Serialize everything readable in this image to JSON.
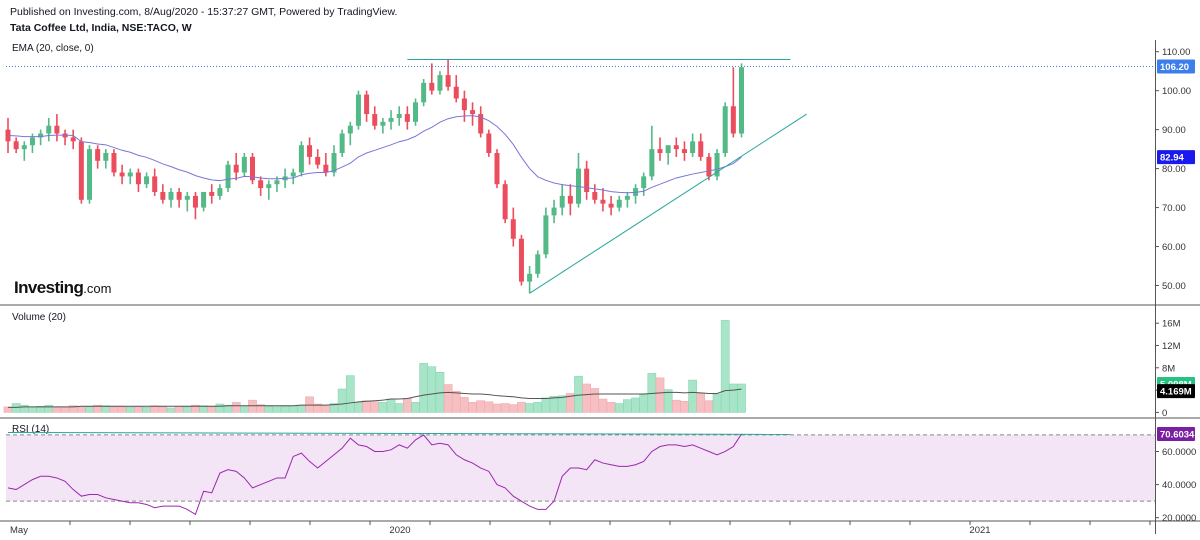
{
  "header": {
    "published": "Published on Investing.com, 8/Aug/2020 - 15:37:27 GMT, Powered by TradingView.",
    "instrument": "Tata Coffee Ltd, India, NSE:TACO, W"
  },
  "logo": {
    "brand": "Investing",
    "suffix": ".com"
  },
  "colors": {
    "up": "#53b987",
    "down": "#eb4d5c",
    "ema": "#7b75d8",
    "rsi": "#9c27b0",
    "rsi_fill": "#f3e5f5",
    "trendline": "#26a69a",
    "price_badge": "#3d7fea",
    "ema_badge": "#1a1aee",
    "rsi_badge": "#7b1fa2",
    "vol_badge": "#26c281",
    "vol_ma_badge": "#000000"
  },
  "chart_data": [
    {
      "type": "candlestick",
      "title": "EMA (20, close, 0)",
      "ylim": [
        45,
        113
      ],
      "yticks": [
        "50.00",
        "60.00",
        "70.00",
        "80.00",
        "90.00",
        "100.00",
        "110.00"
      ],
      "last_price": "106.20",
      "ema_last": "82.94",
      "bars": [
        [
          90,
          93,
          84,
          87
        ],
        [
          87,
          88,
          84,
          85
        ],
        [
          85,
          87,
          82,
          86
        ],
        [
          86,
          89,
          84,
          88
        ],
        [
          88,
          90,
          86,
          89
        ],
        [
          89,
          93,
          87,
          91
        ],
        [
          91,
          94,
          87,
          89
        ],
        [
          89,
          90,
          86,
          88
        ],
        [
          88,
          90,
          85,
          87
        ],
        [
          87,
          88,
          71,
          72
        ],
        [
          72,
          86,
          71,
          85
        ],
        [
          85,
          86,
          80,
          82
        ],
        [
          82,
          85,
          80,
          84
        ],
        [
          84,
          85,
          78,
          79
        ],
        [
          79,
          81,
          76,
          78
        ],
        [
          78,
          80,
          76,
          79
        ],
        [
          79,
          80,
          74,
          76
        ],
        [
          76,
          79,
          75,
          78
        ],
        [
          78,
          80,
          73,
          74
        ],
        [
          74,
          76,
          71,
          72
        ],
        [
          72,
          75,
          70,
          74
        ],
        [
          74,
          75,
          70,
          72
        ],
        [
          72,
          74,
          69,
          73
        ],
        [
          73,
          74,
          67,
          70
        ],
        [
          70,
          74,
          69,
          74
        ],
        [
          74,
          76,
          71,
          73
        ],
        [
          73,
          76,
          72,
          75
        ],
        [
          75,
          82,
          74,
          81
        ],
        [
          81,
          84,
          77,
          79
        ],
        [
          79,
          84,
          78,
          83
        ],
        [
          83,
          84,
          76,
          77
        ],
        [
          77,
          78,
          73,
          75
        ],
        [
          75,
          77,
          72,
          76
        ],
        [
          76,
          78,
          74,
          77
        ],
        [
          77,
          80,
          75,
          78
        ],
        [
          78,
          80,
          76,
          79
        ],
        [
          79,
          87,
          78,
          86
        ],
        [
          86,
          88,
          81,
          83
        ],
        [
          83,
          85,
          80,
          81
        ],
        [
          81,
          84,
          78,
          79
        ],
        [
          79,
          86,
          78,
          84
        ],
        [
          84,
          90,
          83,
          89
        ],
        [
          89,
          92,
          86,
          91
        ],
        [
          91,
          100,
          90,
          99
        ],
        [
          99,
          100,
          92,
          94
        ],
        [
          94,
          96,
          90,
          91
        ],
        [
          91,
          93,
          89,
          92
        ],
        [
          92,
          95,
          90,
          93
        ],
        [
          93,
          96,
          91,
          94
        ],
        [
          94,
          96,
          90,
          92
        ],
        [
          92,
          98,
          91,
          97
        ],
        [
          97,
          103,
          96,
          102
        ],
        [
          102,
          107,
          99,
          100
        ],
        [
          100,
          105,
          99,
          104
        ],
        [
          104,
          108,
          100,
          101
        ],
        [
          101,
          104,
          97,
          98
        ],
        [
          98,
          100,
          92,
          95
        ],
        [
          95,
          97,
          91,
          94
        ],
        [
          94,
          96,
          88,
          89
        ],
        [
          89,
          90,
          83,
          84
        ],
        [
          84,
          85,
          75,
          76
        ],
        [
          76,
          77,
          66,
          67
        ],
        [
          67,
          70,
          60,
          62
        ],
        [
          62,
          63,
          50,
          51
        ],
        [
          51,
          55,
          48,
          53
        ],
        [
          53,
          59,
          52,
          58
        ],
        [
          58,
          70,
          57,
          68
        ],
        [
          68,
          72,
          66,
          70
        ],
        [
          70,
          76,
          68,
          73
        ],
        [
          73,
          76,
          68,
          71
        ],
        [
          71,
          84,
          70,
          80
        ],
        [
          80,
          82,
          72,
          74
        ],
        [
          74,
          76,
          71,
          72
        ],
        [
          72,
          75,
          69,
          71
        ],
        [
          71,
          73,
          68,
          70
        ],
        [
          70,
          73,
          69,
          72
        ],
        [
          72,
          74,
          70,
          73
        ],
        [
          73,
          76,
          71,
          75
        ],
        [
          75,
          79,
          73,
          78
        ],
        [
          78,
          91,
          77,
          85
        ],
        [
          85,
          88,
          82,
          84
        ],
        [
          84,
          86,
          81,
          86
        ],
        [
          86,
          88,
          83,
          85
        ],
        [
          85,
          87,
          82,
          84
        ],
        [
          84,
          89,
          83,
          87
        ],
        [
          87,
          89,
          82,
          83
        ],
        [
          83,
          84,
          77,
          78
        ],
        [
          78,
          85,
          77,
          84
        ],
        [
          84,
          97,
          83,
          96
        ],
        [
          96,
          106,
          88,
          89
        ],
        [
          89,
          107,
          88,
          106
        ]
      ],
      "ema": [
        88.5,
        88.4,
        88.2,
        88.2,
        88.2,
        88.5,
        88.6,
        88.6,
        88.5,
        86.9,
        86.7,
        86.3,
        86.1,
        85.4,
        84.7,
        84.2,
        83.4,
        82.9,
        82.1,
        81.2,
        80.5,
        79.7,
        79.1,
        78.2,
        77.6,
        77.1,
        76.9,
        77.3,
        77.5,
        78.0,
        77.9,
        77.6,
        77.4,
        77.4,
        77.5,
        77.6,
        78.4,
        78.8,
        79.0,
        79.0,
        79.5,
        80.4,
        81.4,
        83.0,
        84.0,
        84.7,
        85.4,
        86.1,
        86.9,
        87.4,
        88.3,
        89.6,
        90.6,
        91.9,
        92.8,
        93.3,
        93.5,
        93.6,
        93.2,
        92.3,
        90.8,
        88.8,
        86.2,
        82.9,
        80.0,
        77.9,
        77.0,
        76.3,
        75.9,
        75.6,
        75.4,
        75.1,
        74.8,
        74.5,
        74.1,
        73.9,
        73.8,
        73.9,
        74.2,
        75.2,
        76.0,
        76.8,
        77.6,
        78.1,
        78.6,
        79.0,
        79.4,
        79.8,
        80.5,
        81.3,
        82.94
      ]
    },
    {
      "type": "bar",
      "title": "Volume (20)",
      "ylim": [
        -1,
        18
      ],
      "yticks": [
        "0",
        "4M",
        "8M",
        "12M",
        "16M"
      ],
      "last_volume": "5.098M",
      "volume_ma": "4.169M",
      "values": [
        1.0,
        1.6,
        1.3,
        1.0,
        1.1,
        1.3,
        1.0,
        1.0,
        1.2,
        1.1,
        1.0,
        1.3,
        1.2,
        1.0,
        1.0,
        0.9,
        1.1,
        0.9,
        1.2,
        1.0,
        0.8,
        1.1,
        1.0,
        1.3,
        1.2,
        1.0,
        1.5,
        1.3,
        1.8,
        1.2,
        2.2,
        1.4,
        1.1,
        1.0,
        1.1,
        1.2,
        1.3,
        2.8,
        1.5,
        1.3,
        1.6,
        4.2,
        6.6,
        1.8,
        2.1,
        1.9,
        1.8,
        2.4,
        1.6,
        2.5,
        1.8,
        8.8,
        8.2,
        7.2,
        5.0,
        3.8,
        2.7,
        1.8,
        2.1,
        1.9,
        1.5,
        1.6,
        1.4,
        1.8,
        1.6,
        1.8,
        2.6,
        2.9,
        3.0,
        3.4,
        6.5,
        5.1,
        4.3,
        2.4,
        1.8,
        1.6,
        2.3,
        2.6,
        3.2,
        7.0,
        6.2,
        4.1,
        2.2,
        2.0,
        5.8,
        3.4,
        2.1,
        3.3,
        16.5,
        5.1,
        5.098
      ],
      "ma": [
        0.9,
        0.9,
        1.0,
        1.0,
        1.0,
        1.0,
        1.0,
        1.0,
        1.0,
        1.1,
        1.1,
        1.1,
        1.1,
        1.1,
        1.1,
        1.1,
        1.1,
        1.1,
        1.1,
        1.1,
        1.1,
        1.1,
        1.1,
        1.1,
        1.1,
        1.1,
        1.1,
        1.2,
        1.2,
        1.2,
        1.2,
        1.2,
        1.2,
        1.2,
        1.2,
        1.2,
        1.3,
        1.3,
        1.3,
        1.3,
        1.4,
        1.5,
        1.7,
        1.9,
        2.0,
        2.1,
        2.2,
        2.4,
        2.4,
        2.5,
        2.8,
        3.1,
        3.3,
        3.5,
        3.6,
        3.5,
        3.4,
        3.3,
        3.3,
        3.2,
        3.0,
        2.9,
        2.8,
        2.6,
        2.5,
        2.5,
        2.5,
        2.6,
        2.7,
        2.9,
        3.1,
        3.2,
        3.3,
        3.3,
        3.3,
        3.3,
        3.3,
        3.3,
        3.3,
        3.4,
        3.5,
        3.6,
        3.6,
        3.5,
        3.6,
        3.5,
        3.4,
        3.4,
        3.9,
        4.0,
        4.169
      ],
      "up": [
        0,
        1,
        1,
        1,
        1,
        1,
        0,
        0,
        0,
        0,
        1,
        0,
        1,
        0,
        0,
        1,
        0,
        1,
        0,
        0,
        1,
        0,
        1,
        0,
        1,
        0,
        1,
        1,
        0,
        1,
        0,
        0,
        1,
        1,
        1,
        1,
        1,
        0,
        0,
        0,
        1,
        1,
        1,
        1,
        0,
        0,
        1,
        1,
        1,
        0,
        1,
        1,
        1,
        1,
        0,
        0,
        0,
        0,
        0,
        0,
        0,
        0,
        0,
        0,
        1,
        1,
        1,
        1,
        1,
        0,
        1,
        0,
        0,
        0,
        0,
        1,
        1,
        1,
        1,
        1,
        0,
        1,
        0,
        0,
        1,
        0,
        0,
        1,
        1,
        1,
        1
      ]
    },
    {
      "type": "line",
      "title": "RSI (14)",
      "ylim": [
        18,
        76
      ],
      "yticks": [
        "20.0000",
        "40.0000",
        "60.0000"
      ],
      "bands": [
        30,
        70
      ],
      "last_value": "70.6034",
      "values": [
        38,
        37,
        40,
        43,
        45,
        45,
        44,
        42,
        37,
        33,
        34,
        34,
        32,
        31,
        30,
        29,
        29,
        28,
        26,
        27,
        27,
        27,
        25,
        22,
        36,
        35,
        47,
        49,
        48,
        44,
        38,
        40,
        42,
        44,
        44,
        57,
        59,
        54,
        50,
        54,
        58,
        62,
        68,
        64,
        63,
        60,
        60,
        61,
        64,
        62,
        67,
        70,
        64,
        65,
        64,
        58,
        55,
        53,
        50,
        48,
        40,
        38,
        33,
        30,
        27,
        25,
        25,
        30,
        45,
        50,
        50,
        49,
        55,
        53,
        52,
        51,
        51,
        52,
        54,
        60,
        63,
        64,
        64,
        63,
        64,
        62,
        60,
        58,
        60,
        63,
        70.6
      ]
    }
  ],
  "xaxis": {
    "labels": [
      "May",
      "2020",
      "2021"
    ]
  }
}
